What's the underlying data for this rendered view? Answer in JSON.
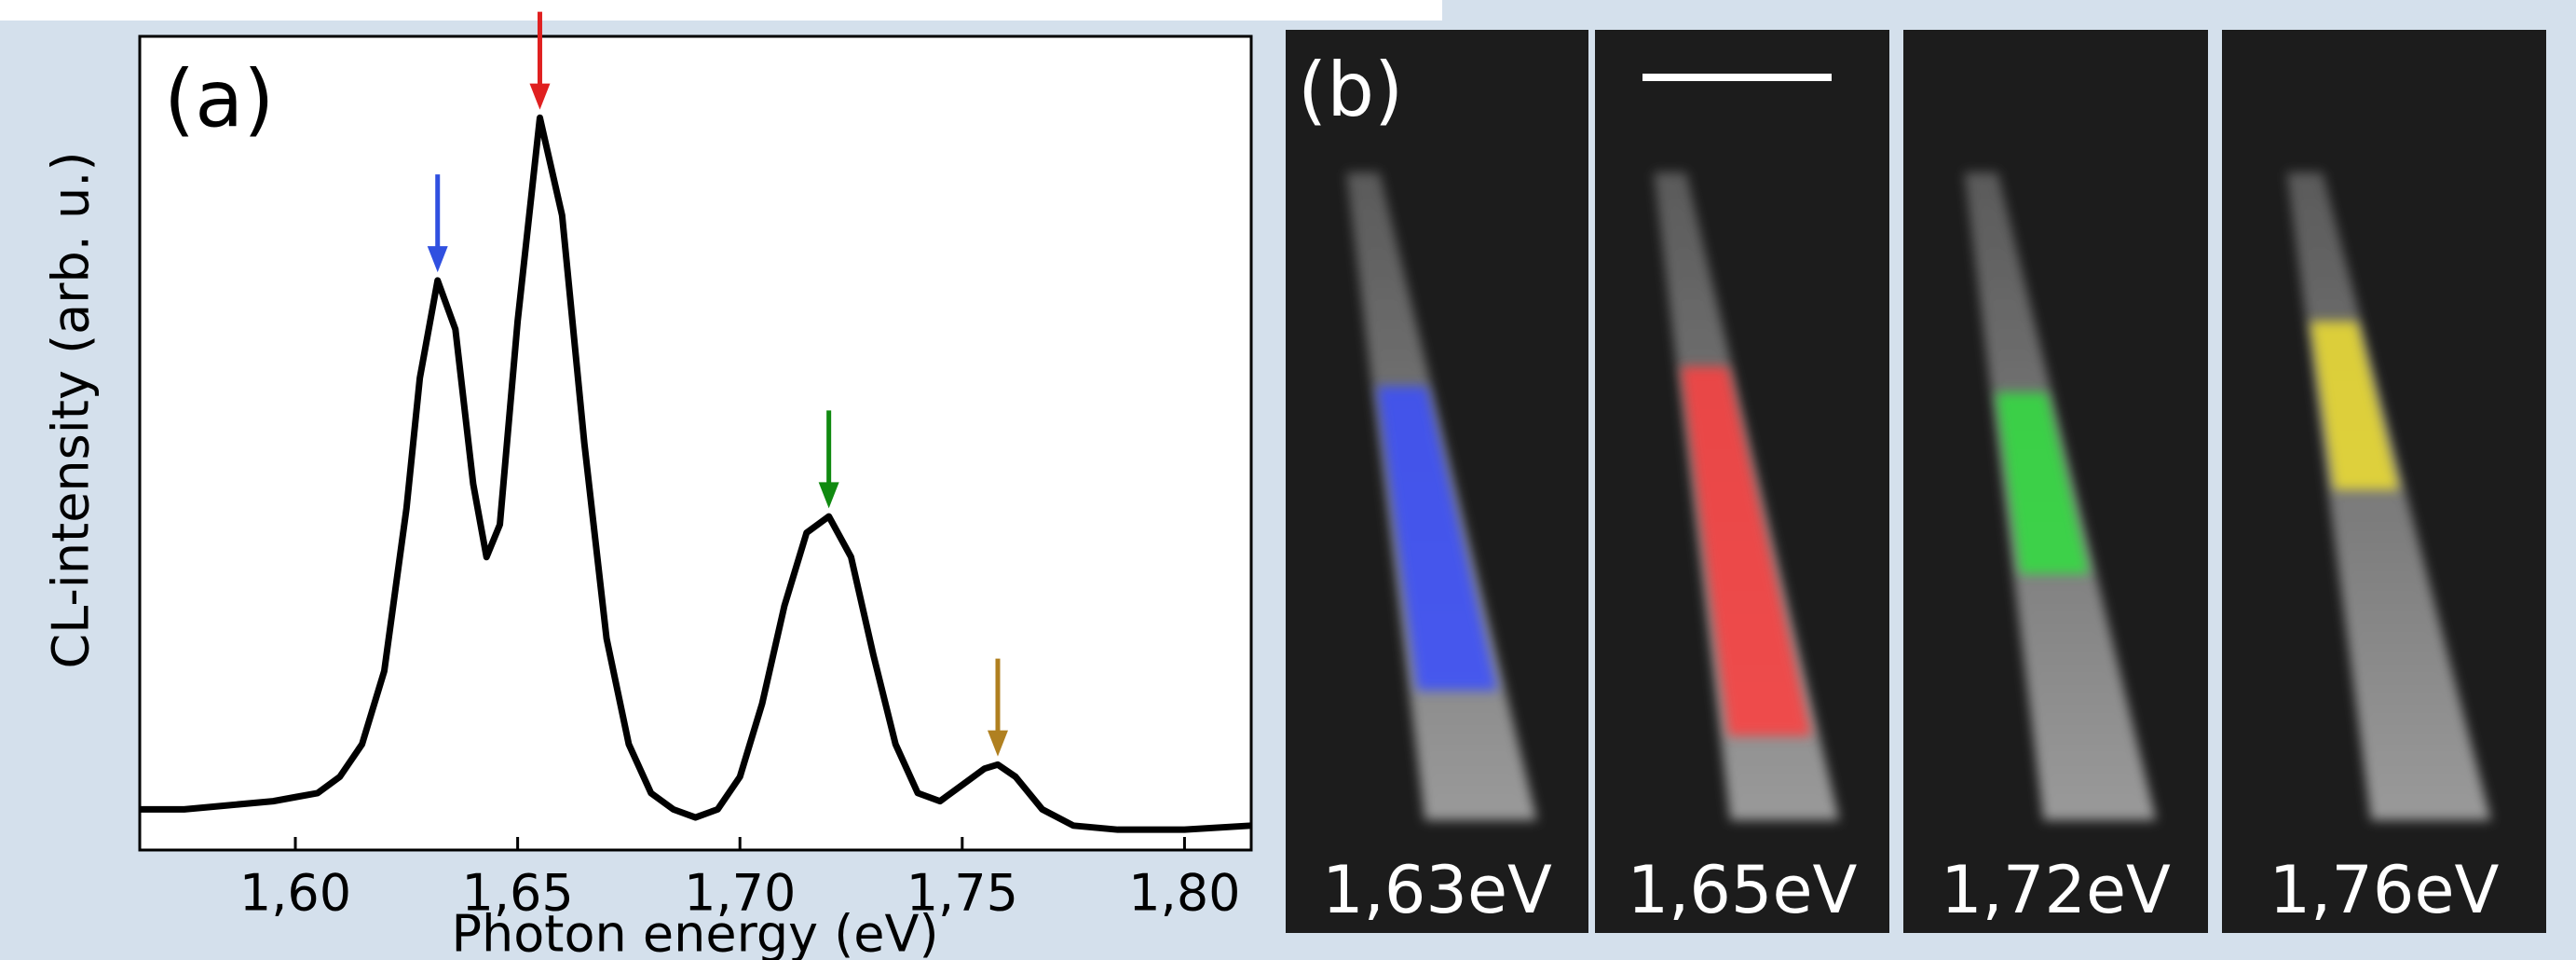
{
  "chart_data": {
    "type": "line",
    "panel_label": "(a)",
    "ylabel": "CL-intensity (arb. u.)",
    "xlabel": "Photon energy (eV)",
    "xlim": [
      1.565,
      1.815
    ],
    "ylim": [
      0,
      1
    ],
    "xticks": [
      {
        "value": 1.6,
        "label": "1,60"
      },
      {
        "value": 1.65,
        "label": "1,65"
      },
      {
        "value": 1.7,
        "label": "1,70"
      },
      {
        "value": 1.75,
        "label": "1,75"
      },
      {
        "value": 1.8,
        "label": "1,80"
      }
    ],
    "x": [
      1.565,
      1.575,
      1.585,
      1.595,
      1.6,
      1.605,
      1.61,
      1.615,
      1.62,
      1.625,
      1.628,
      1.632,
      1.636,
      1.64,
      1.643,
      1.646,
      1.65,
      1.655,
      1.66,
      1.665,
      1.67,
      1.675,
      1.68,
      1.685,
      1.69,
      1.695,
      1.7,
      1.705,
      1.71,
      1.715,
      1.72,
      1.725,
      1.73,
      1.735,
      1.74,
      1.745,
      1.75,
      1.755,
      1.758,
      1.762,
      1.768,
      1.775,
      1.785,
      1.8,
      1.815
    ],
    "series": [
      {
        "color": "#000000",
        "values": [
          0.05,
          0.05,
          0.055,
          0.06,
          0.065,
          0.07,
          0.09,
          0.13,
          0.22,
          0.42,
          0.58,
          0.7,
          0.64,
          0.45,
          0.36,
          0.4,
          0.65,
          0.9,
          0.78,
          0.5,
          0.26,
          0.13,
          0.07,
          0.05,
          0.04,
          0.05,
          0.09,
          0.18,
          0.3,
          0.39,
          0.41,
          0.36,
          0.24,
          0.13,
          0.07,
          0.06,
          0.08,
          0.1,
          0.105,
          0.09,
          0.05,
          0.03,
          0.025,
          0.025,
          0.03
        ]
      }
    ],
    "arrows": [
      {
        "x": 1.632,
        "y": 0.71,
        "color": "#3050e0"
      },
      {
        "x": 1.655,
        "y": 0.91,
        "color": "#e02020"
      },
      {
        "x": 1.72,
        "y": 0.42,
        "color": "#108a10"
      },
      {
        "x": 1.758,
        "y": 0.115,
        "color": "#b08020"
      }
    ]
  },
  "images": {
    "panel_label": "(b)",
    "panels": [
      {
        "label": "1,63eV",
        "color": "#3a50ff"
      },
      {
        "label": "1,65eV",
        "color": "#ff4040"
      },
      {
        "label": "1,72eV",
        "color": "#30e040"
      },
      {
        "label": "1,76eV",
        "color": "#f0e030"
      }
    ]
  }
}
